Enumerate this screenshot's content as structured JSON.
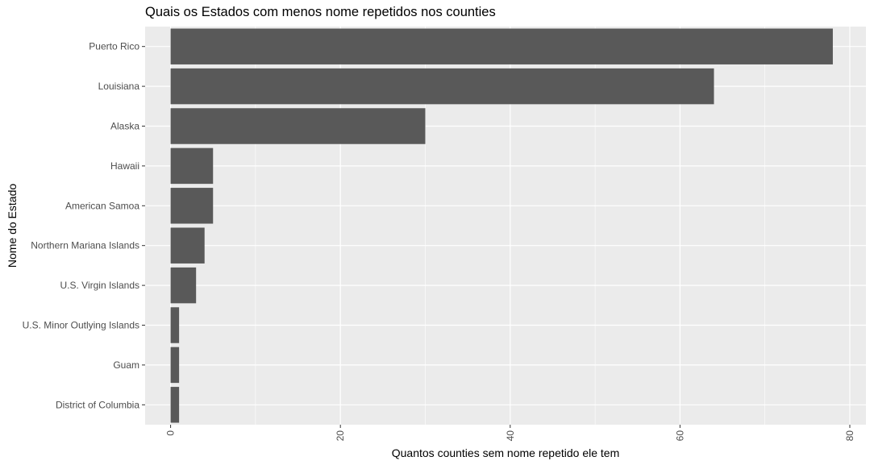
{
  "chart_data": {
    "type": "bar",
    "orientation": "horizontal",
    "title": "Quais os Estados com menos nome repetidos nos counties",
    "xlabel": "Quantos counties sem nome repetido ele tem",
    "ylabel": "Nome do Estado",
    "categories": [
      "Puerto Rico",
      "Louisiana",
      "Alaska",
      "Hawaii",
      "American Samoa",
      "Northern Mariana Islands",
      "U.S. Virgin Islands",
      "U.S. Minor Outlying Islands",
      "Guam",
      "District of Columbia"
    ],
    "values": [
      78,
      64,
      30,
      5,
      5,
      4,
      3,
      1,
      1,
      1
    ],
    "xlim": [
      -3,
      81.9
    ],
    "xticks": [
      0,
      20,
      40,
      60,
      80
    ],
    "xtick_labels": [
      "0",
      "20",
      "40",
      "60",
      "80"
    ],
    "grid": true,
    "colors": {
      "panel": "#ebebeb",
      "bar": "#595959",
      "grid": "#ffffff",
      "text": "#4d4d4d"
    }
  }
}
